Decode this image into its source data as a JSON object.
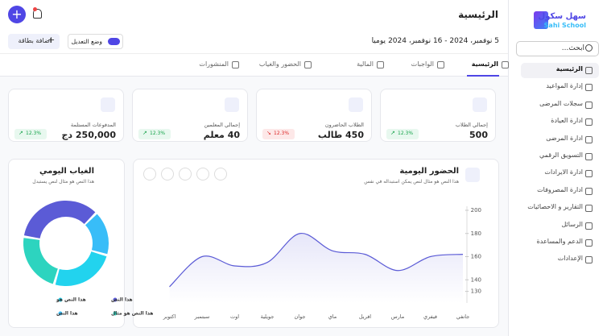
{
  "sidebar": {
    "logo_ar": "سهل سكول",
    "logo_en": "Sahi School",
    "search": "ابحث...",
    "menu": [
      "الرئيسية",
      "إدارة المواعيد",
      "سجلات المرضى",
      "ادارة العيادة",
      "ادارة المرضى",
      "التسويق الرقمي",
      "ادارة الايرادات",
      "ادارة المصروفات",
      "التقارير و الاحصائيات",
      "الرسائل",
      "الدعم والمساعدة",
      "الإعدادات"
    ]
  },
  "header": {
    "title": "الرئيسية",
    "date_range": "5 نوفمبر، 2024 - 16 نوفمبر، 2024",
    "period": "يوميا",
    "edit_mode": "وضع التعديل",
    "add_card": "اضافة بطاقة"
  },
  "tabs": [
    "الرئيسية",
    "الواجبات",
    "المالية",
    "الحضور والغياب",
    "المنشورات"
  ],
  "cards": [
    {
      "label": "إجمالي الطلاب",
      "value": "500",
      "change": "12.3%",
      "trend": "up"
    },
    {
      "label": "الطلاب الحاضرون",
      "value": "450 طالب",
      "change": "12.3%",
      "trend": "down"
    },
    {
      "label": "إجمالي المعلمين",
      "value": "40 معلم",
      "change": "12.3%",
      "trend": "up"
    },
    {
      "label": "المدفوعات المستلمة",
      "value": "250,000 دج",
      "change": "12.3%",
      "trend": "up"
    }
  ],
  "attendance_chart": {
    "type": "line",
    "title": "الحضور اليومية",
    "subtitle": "هذا النص هو مثال لنص يمكن استبداله في نفس",
    "categories": [
      "جانفي",
      "فيفري",
      "مارس",
      "افريل",
      "ماي",
      "جوان",
      "جويلية",
      "اوت",
      "سبتمبر",
      "اكتوبر"
    ],
    "values": [
      162,
      160,
      148,
      162,
      165,
      180,
      155,
      152,
      160,
      134
    ],
    "color": "#5b5bd6",
    "ylim": [
      120,
      200
    ],
    "yticks": [
      200,
      180,
      160,
      140,
      130
    ]
  },
  "absence_chart": {
    "type": "pie",
    "title": "الغياب اليومي",
    "subtitle": "هذا النص هو مثال لنص يستبدل",
    "series": [
      {
        "name": "هذا النص",
        "color": "#38bdf8",
        "value": 17
      },
      {
        "name": "هذا النص هو",
        "color": "#22d3ee",
        "value": 25
      },
      {
        "name": "هذا النص هو مثال",
        "color": "#2dd4bf",
        "value": 23
      },
      {
        "name": "هذا النص",
        "color": "#5b5bd6",
        "value": 35
      }
    ]
  }
}
